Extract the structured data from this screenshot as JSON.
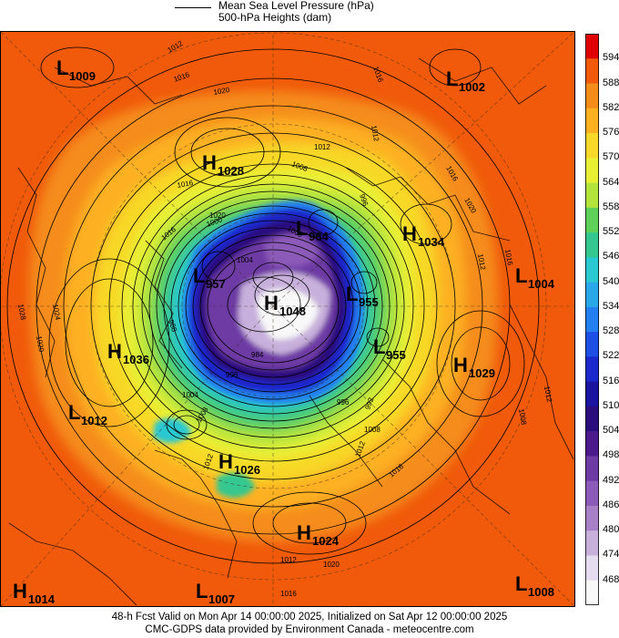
{
  "legend": {
    "line1": "Mean Sea Level Pressure (hPa)",
    "line2": "500-hPa Heights (dam)"
  },
  "colorbar": {
    "labels": [
      "594",
      "588",
      "582",
      "576",
      "570",
      "564",
      "558",
      "552",
      "546",
      "540",
      "534",
      "528",
      "522",
      "516",
      "510",
      "504",
      "498",
      "492",
      "486",
      "480",
      "474",
      "468"
    ],
    "colors": [
      "#e00000",
      "#f05a0a",
      "#f58c1a",
      "#fdb020",
      "#f8d828",
      "#e8f034",
      "#b4e43c",
      "#5fd05a",
      "#34c890",
      "#2ac8d0",
      "#28a8e8",
      "#2480f0",
      "#1e50e6",
      "#1a28cc",
      "#1a14a0",
      "#2a0e7e",
      "#4c1a8c",
      "#6e3aa4",
      "#8c5ab8",
      "#a880c8",
      "#c8b0dc",
      "#e6dcf0",
      "#f8f8f8"
    ]
  },
  "pressure_systems": [
    {
      "type": "L",
      "value": "1009"
    },
    {
      "type": "L",
      "value": "1002"
    },
    {
      "type": "H",
      "value": "1028"
    },
    {
      "type": "L",
      "value": "964"
    },
    {
      "type": "H",
      "value": "1034"
    },
    {
      "type": "L",
      "value": "957"
    },
    {
      "type": "H",
      "value": "1048"
    },
    {
      "type": "L",
      "value": "955"
    },
    {
      "type": "L",
      "value": "1004"
    },
    {
      "type": "H",
      "value": "1036"
    },
    {
      "type": "L",
      "value": "955"
    },
    {
      "type": "H",
      "value": "1029"
    },
    {
      "type": "L",
      "value": "1012"
    },
    {
      "type": "H",
      "value": "1026"
    },
    {
      "type": "H",
      "value": "1024"
    },
    {
      "type": "H",
      "value": "1014"
    },
    {
      "type": "L",
      "value": "1007"
    },
    {
      "type": "L",
      "value": "1008"
    }
  ],
  "contour_labels": [
    "1012",
    "1016",
    "1020",
    "1016",
    "1012",
    "1008",
    "1016",
    "1020",
    "1012",
    "1016",
    "1000",
    "1004",
    "996",
    "1020",
    "1024",
    "1028",
    "1016",
    "1012",
    "1012",
    "1008",
    "1016",
    "1020",
    "1008",
    "1012",
    "1016",
    "1020",
    "1012",
    "1016",
    "1012",
    "1008",
    "1004",
    "996",
    "992",
    "988",
    "984",
    "1000",
    "996"
  ],
  "footer": {
    "line1": "48-h Fcst Valid on Mon Apr 14 00:00:00 2025, Initialized on Sat Apr 12 00:00:00 2025",
    "line2": "CMC-GDPS data provided by Environment Canada - meteocentre.com"
  }
}
